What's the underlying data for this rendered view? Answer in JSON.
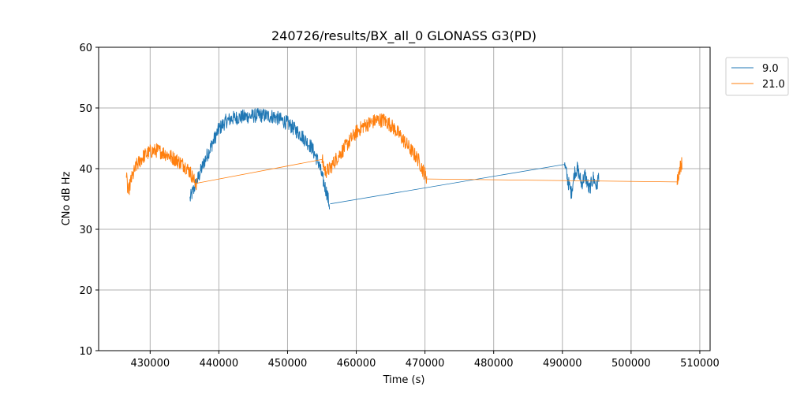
{
  "chart_data": {
    "type": "line",
    "title": "240726/results/BX_all_0 GLONASS G3(PD)",
    "xlabel": "Time (s)",
    "ylabel": "CNo dB Hz",
    "xlim": [
      422500,
      511500
    ],
    "ylim": [
      10,
      60
    ],
    "xticks": [
      430000,
      440000,
      450000,
      460000,
      470000,
      480000,
      490000,
      500000,
      510000
    ],
    "xtick_labels": [
      "430000",
      "440000",
      "450000",
      "460000",
      "470000",
      "480000",
      "490000",
      "500000",
      "510000"
    ],
    "yticks": [
      10,
      20,
      30,
      40,
      50,
      60
    ],
    "ytick_labels": [
      "10",
      "20",
      "30",
      "40",
      "50",
      "60"
    ],
    "grid": true,
    "legend_position": "outside-top-right",
    "series": [
      {
        "name": "9.0",
        "color": "#1f77b4",
        "segments": [
          {
            "x": [
              435800,
              436300,
              437000,
              438000,
              439000,
              440000,
              441000,
              442000,
              444000,
              446000,
              448000,
              450000,
              452000,
              453500,
              454500,
              455200,
              455700,
              456100
            ],
            "y": [
              35.0,
              36.5,
              38.5,
              41.5,
              44.0,
              46.5,
              47.8,
              48.3,
              48.6,
              48.8,
              48.6,
              47.5,
              45.5,
              43.5,
              41.0,
              38.0,
              36.0,
              34.0
            ]
          },
          {
            "x": [
              456200,
              490300
            ],
            "y": [
              34.2,
              40.7
            ]
          },
          {
            "x": [
              490300,
              490800,
              491300,
              491800,
              492200,
              492800,
              493300,
              493900,
              494500,
              495000,
              495300
            ],
            "y": [
              40.7,
              38.0,
              36.0,
              39.5,
              40.0,
              37.5,
              39.0,
              36.5,
              38.5,
              37.0,
              39.0
            ]
          }
        ]
      },
      {
        "name": "21.0",
        "color": "#ff7f0e",
        "segments": [
          {
            "x": [
              426500,
              426800,
              427200,
              428000,
              429000,
              430000,
              431000,
              432000,
              433000,
              434000,
              435000,
              435800,
              436400,
              436800
            ],
            "y": [
              39.0,
              36.0,
              38.0,
              40.5,
              42.0,
              42.8,
              43.0,
              42.6,
              42.0,
              41.3,
              40.5,
              39.5,
              38.0,
              37.5
            ]
          },
          {
            "x": [
              436800,
              455000
            ],
            "y": [
              37.6,
              41.5
            ]
          },
          {
            "x": [
              455000,
              455500,
              456200,
              457000,
              458000,
              459000,
              460000,
              461000,
              462000,
              463000,
              464000,
              465000,
              466000,
              467000,
              468000,
              469000,
              469800,
              470300
            ],
            "y": [
              41.5,
              39.5,
              40.0,
              41.5,
              43.0,
              44.5,
              46.0,
              47.0,
              47.5,
              48.0,
              48.0,
              47.2,
              46.0,
              44.5,
              43.0,
              41.5,
              39.5,
              38.5
            ]
          },
          {
            "x": [
              470300,
              506700
            ],
            "y": [
              38.3,
              37.8
            ]
          },
          {
            "x": [
              506700,
              506900,
              507200,
              507400
            ],
            "y": [
              37.8,
              39.0,
              40.5,
              41.0
            ]
          }
        ]
      }
    ]
  }
}
